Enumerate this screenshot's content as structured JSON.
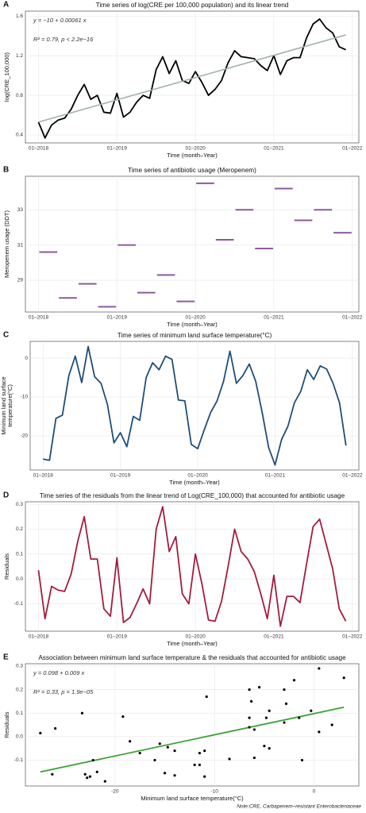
{
  "note": "Note:CRE, Carbapenem–resistant Enterobacteriaceae",
  "chart_data": [
    {
      "panel": "A",
      "type": "line",
      "title": "Time series of log(CRE per 100,000 population) and its linear trend",
      "x_label": "Time (month–Year)",
      "y_label": [
        "log(CRE_100,000)"
      ],
      "annotations": [
        "y = −10 + 0.00061 x",
        "R² = 0.79, p < 2.2e−16"
      ],
      "annotation_color": "#a0a8a6",
      "x": [
        "2018-01",
        "2018-02",
        "2018-03",
        "2018-04",
        "2018-05",
        "2018-06",
        "2018-07",
        "2018-08",
        "2018-09",
        "2018-10",
        "2018-11",
        "2018-12",
        "2019-01",
        "2019-02",
        "2019-03",
        "2019-04",
        "2019-05",
        "2019-06",
        "2019-07",
        "2019-08",
        "2019-09",
        "2019-10",
        "2019-11",
        "2019-12",
        "2020-01",
        "2020-02",
        "2020-03",
        "2020-04",
        "2020-05",
        "2020-06",
        "2020-07",
        "2020-08",
        "2020-09",
        "2020-10",
        "2020-11",
        "2020-12",
        "2021-01",
        "2021-02",
        "2021-03",
        "2021-04",
        "2021-05",
        "2021-06",
        "2021-07",
        "2021-08",
        "2021-09",
        "2021-10",
        "2021-11",
        "2021-12"
      ],
      "series": [
        {
          "color": "#000000",
          "values": [
            0.53,
            0.37,
            0.5,
            0.55,
            0.57,
            0.66,
            0.8,
            0.91,
            0.76,
            0.8,
            0.63,
            0.62,
            0.82,
            0.58,
            0.63,
            0.73,
            0.8,
            0.77,
            1.06,
            1.19,
            1.02,
            1.15,
            0.95,
            0.92,
            1.04,
            0.93,
            0.8,
            0.86,
            0.95,
            1.13,
            1.25,
            1.19,
            1.18,
            1.17,
            1.1,
            1.05,
            1.2,
            1.01,
            1.15,
            1.18,
            1.18,
            1.38,
            1.52,
            1.57,
            1.48,
            1.43,
            1.29,
            1.26
          ]
        },
        {
          "color": "#a3b1ad",
          "x": [
            "2018-01",
            "2021-12"
          ],
          "values": [
            0.53,
            1.41
          ]
        }
      ],
      "xlim": [
        "2017-11",
        "2022-02"
      ],
      "ylim": [
        0.32,
        1.65
      ],
      "xticks": [
        {
          "value": "2018-01",
          "label": "01–2018"
        },
        {
          "value": "2019-01",
          "label": "01–2019"
        },
        {
          "value": "2020-01",
          "label": "01–2020"
        },
        {
          "value": "2021-01",
          "label": "01–2021"
        },
        {
          "value": "2022-01",
          "label": "01–2022"
        }
      ],
      "yticks": [
        0.4,
        0.8,
        1.2,
        1.6
      ],
      "ylabel_color": "#111111",
      "grid": true
    },
    {
      "panel": "B",
      "type": "segment",
      "title": "Time series of antibiotic usage (Meropenem)",
      "x_label": "Time (month–Year)",
      "y_label": [
        "Meropenem usage (DDT)"
      ],
      "ylabel_color": "#9b6fa5",
      "color": "#8e5a9a",
      "x": [
        "2018-01",
        "2018-04",
        "2018-07",
        "2018-10",
        "2019-01",
        "2019-04",
        "2019-07",
        "2019-10",
        "2020-01",
        "2020-04",
        "2020-07",
        "2020-10",
        "2021-01",
        "2021-04",
        "2021-07",
        "2021-10"
      ],
      "values": [
        30.6,
        28.0,
        28.8,
        27.5,
        31.0,
        28.3,
        29.3,
        27.8,
        34.5,
        31.3,
        33.0,
        30.8,
        34.2,
        32.4,
        33.0,
        31.7
      ],
      "xlim": [
        "2017-11",
        "2022-02"
      ],
      "ylim": [
        27.2,
        34.9
      ],
      "xticks": [
        {
          "value": "2018-01",
          "label": "01–2018"
        },
        {
          "value": "2019-01",
          "label": "01–2019"
        },
        {
          "value": "2020-01",
          "label": "01–2020"
        },
        {
          "value": "2021-01",
          "label": "01–2021"
        },
        {
          "value": "2022-01",
          "label": "01–2022"
        }
      ],
      "yticks": [
        29,
        31,
        33
      ],
      "grid": true
    },
    {
      "panel": "C",
      "type": "line",
      "title": "Time series of minimum land surface temperature(°C)",
      "x_label": "Time (month–Year)",
      "y_label": [
        "Minimum land surface",
        "temperature(°C)"
      ],
      "ylabel_color": "#1f4e79",
      "x": [
        "2018-01",
        "2018-02",
        "2018-03",
        "2018-04",
        "2018-05",
        "2018-06",
        "2018-07",
        "2018-08",
        "2018-09",
        "2018-10",
        "2018-11",
        "2018-12",
        "2019-01",
        "2019-02",
        "2019-03",
        "2019-04",
        "2019-05",
        "2019-06",
        "2019-07",
        "2019-08",
        "2019-09",
        "2019-10",
        "2019-11",
        "2019-12",
        "2020-01",
        "2020-02",
        "2020-03",
        "2020-04",
        "2020-05",
        "2020-06",
        "2020-07",
        "2020-08",
        "2020-09",
        "2020-10",
        "2020-11",
        "2020-12",
        "2021-01",
        "2021-02",
        "2021-03",
        "2021-04",
        "2021-05",
        "2021-06",
        "2021-07",
        "2021-08",
        "2021-09",
        "2021-10",
        "2021-11",
        "2021-12"
      ],
      "series": [
        {
          "color": "#1f4e79",
          "values": [
            -26,
            -26.3,
            -15.5,
            -14.7,
            -4.5,
            0.5,
            -6.3,
            3,
            -4.8,
            -6.5,
            -12,
            -21.8,
            -19.2,
            -22.8,
            -15,
            -16,
            -5,
            -1.2,
            -3,
            0.5,
            -0.3,
            -10.8,
            -11,
            -22.2,
            -23.3,
            -18.5,
            -14,
            -11,
            -6,
            1.8,
            -6.5,
            -4.5,
            -1.5,
            -6,
            -14,
            -23,
            -27.5,
            -21,
            -17.5,
            -11.5,
            -8.5,
            -3,
            -5.5,
            -2,
            -2.8,
            -6.5,
            -11.5,
            -22.5
          ]
        }
      ],
      "xlim": [
        "2017-11",
        "2022-02"
      ],
      "ylim": [
        -28.8,
        4.3
      ],
      "xticks": [
        {
          "value": "2018-01",
          "label": "01–2018"
        },
        {
          "value": "2019-01",
          "label": "01–2019"
        },
        {
          "value": "2020-01",
          "label": "01–2020"
        },
        {
          "value": "2021-01",
          "label": "01–2021"
        },
        {
          "value": "2022-01",
          "label": "01–2022"
        }
      ],
      "yticks": [
        -20,
        -10,
        0
      ],
      "grid": true
    },
    {
      "panel": "D",
      "type": "line",
      "title": "Time series of the residuals from the linear trend of Log(CRE_100,000) that accounted for antibiotic usage",
      "x_label": "Time (month–Year)",
      "y_label": [
        "Residuals"
      ],
      "ylabel_color": "#a31d3d",
      "x": [
        "2018-01",
        "2018-02",
        "2018-03",
        "2018-04",
        "2018-05",
        "2018-06",
        "2018-07",
        "2018-08",
        "2018-09",
        "2018-10",
        "2018-11",
        "2018-12",
        "2019-01",
        "2019-02",
        "2019-03",
        "2019-04",
        "2019-05",
        "2019-06",
        "2019-07",
        "2019-08",
        "2019-09",
        "2019-10",
        "2019-11",
        "2019-12",
        "2020-01",
        "2020-02",
        "2020-03",
        "2020-04",
        "2020-05",
        "2020-06",
        "2020-07",
        "2020-08",
        "2020-09",
        "2020-10",
        "2020-11",
        "2020-12",
        "2021-01",
        "2021-02",
        "2021-03",
        "2021-04",
        "2021-05",
        "2021-06",
        "2021-07",
        "2021-08",
        "2021-09",
        "2021-10",
        "2021-11",
        "2021-12"
      ],
      "series": [
        {
          "color": "#a31d3d",
          "values": [
            0.035,
            -0.16,
            -0.03,
            -0.045,
            -0.05,
            0.02,
            0.15,
            0.25,
            0.08,
            0.08,
            -0.12,
            -0.15,
            0.085,
            -0.175,
            -0.155,
            -0.1,
            -0.04,
            -0.1,
            0.2,
            0.29,
            0.11,
            0.17,
            -0.06,
            -0.1,
            0.1,
            -0.02,
            -0.165,
            -0.17,
            -0.09,
            0.05,
            0.2,
            0.11,
            0.08,
            0.03,
            -0.06,
            -0.16,
            0.015,
            -0.19,
            -0.07,
            -0.07,
            -0.095,
            0.06,
            0.21,
            0.24,
            0.14,
            0.04,
            -0.12,
            -0.17
          ]
        }
      ],
      "xlim": [
        "2017-11",
        "2022-02"
      ],
      "ylim": [
        -0.21,
        0.31
      ],
      "xticks": [
        {
          "value": "2018-01",
          "label": "01–2018"
        },
        {
          "value": "2019-01",
          "label": "01–2019"
        },
        {
          "value": "2020-01",
          "label": "01–2020"
        },
        {
          "value": "2021-01",
          "label": "01–2021"
        },
        {
          "value": "2022-01",
          "label": "01–2022"
        }
      ],
      "yticks": [
        -0.1,
        {
          "value": 0,
          "label": "0.0"
        },
        0.1,
        0.2,
        0.3
      ],
      "grid": true
    },
    {
      "panel": "E",
      "type": "scatter",
      "title": "Association between minimum land surface temperature & the residuals that accounted for antibiotic usage",
      "x_label": "Minimum land surface temperature(°C)",
      "xlabel_color": "#1f4e79",
      "y_label": [
        "Residuals"
      ],
      "ylabel_color": "#a31d3d",
      "annotations": [
        "y = 0.098 + 0.009 x",
        "R² = 0.33, p = 1.9e−05"
      ],
      "annotation_color": "#3aa335",
      "color": "#000000",
      "x": [
        -26,
        -26.3,
        -15.5,
        -14.7,
        -4.5,
        0.5,
        -6.3,
        3,
        -4.8,
        -6.5,
        -12,
        -21.8,
        -19.2,
        -22.8,
        -15,
        -16,
        -5,
        -1.2,
        -3,
        0.5,
        -0.3,
        -10.8,
        -11,
        -22.2,
        -23.3,
        -18.5,
        -14,
        -11,
        -6,
        1.8,
        -6.5,
        -4.5,
        -1.5,
        -6,
        -14,
        -23,
        -27.5,
        -21,
        -17.5,
        -11.5,
        -8.5,
        -3,
        -5.5,
        -2,
        -2.8,
        -6.5,
        -11.5,
        -22.5
      ],
      "values": [
        0.035,
        -0.16,
        -0.03,
        -0.045,
        -0.05,
        0.02,
        0.15,
        0.25,
        0.08,
        0.08,
        -0.12,
        -0.15,
        0.085,
        -0.175,
        -0.155,
        -0.1,
        -0.04,
        -0.1,
        0.2,
        0.29,
        0.11,
        0.17,
        -0.06,
        -0.1,
        0.1,
        -0.02,
        -0.165,
        -0.17,
        -0.09,
        0.05,
        0.2,
        0.11,
        0.08,
        0.03,
        -0.06,
        -0.16,
        0.015,
        -0.19,
        -0.07,
        -0.07,
        -0.095,
        0.06,
        0.21,
        0.24,
        0.14,
        0.04,
        -0.12,
        -0.17
      ],
      "trend": {
        "color": "#3aa335",
        "x": [
          -27.5,
          3
        ],
        "values": [
          -0.15,
          0.125
        ]
      },
      "xlim": [
        -29,
        4.5
      ],
      "ylim": [
        -0.21,
        0.31
      ],
      "xticks": [
        -20,
        -10,
        0
      ],
      "yticks": [
        -0.1,
        {
          "value": 0,
          "label": "0.0"
        },
        0.1,
        0.2,
        0.3
      ],
      "grid": true
    }
  ]
}
